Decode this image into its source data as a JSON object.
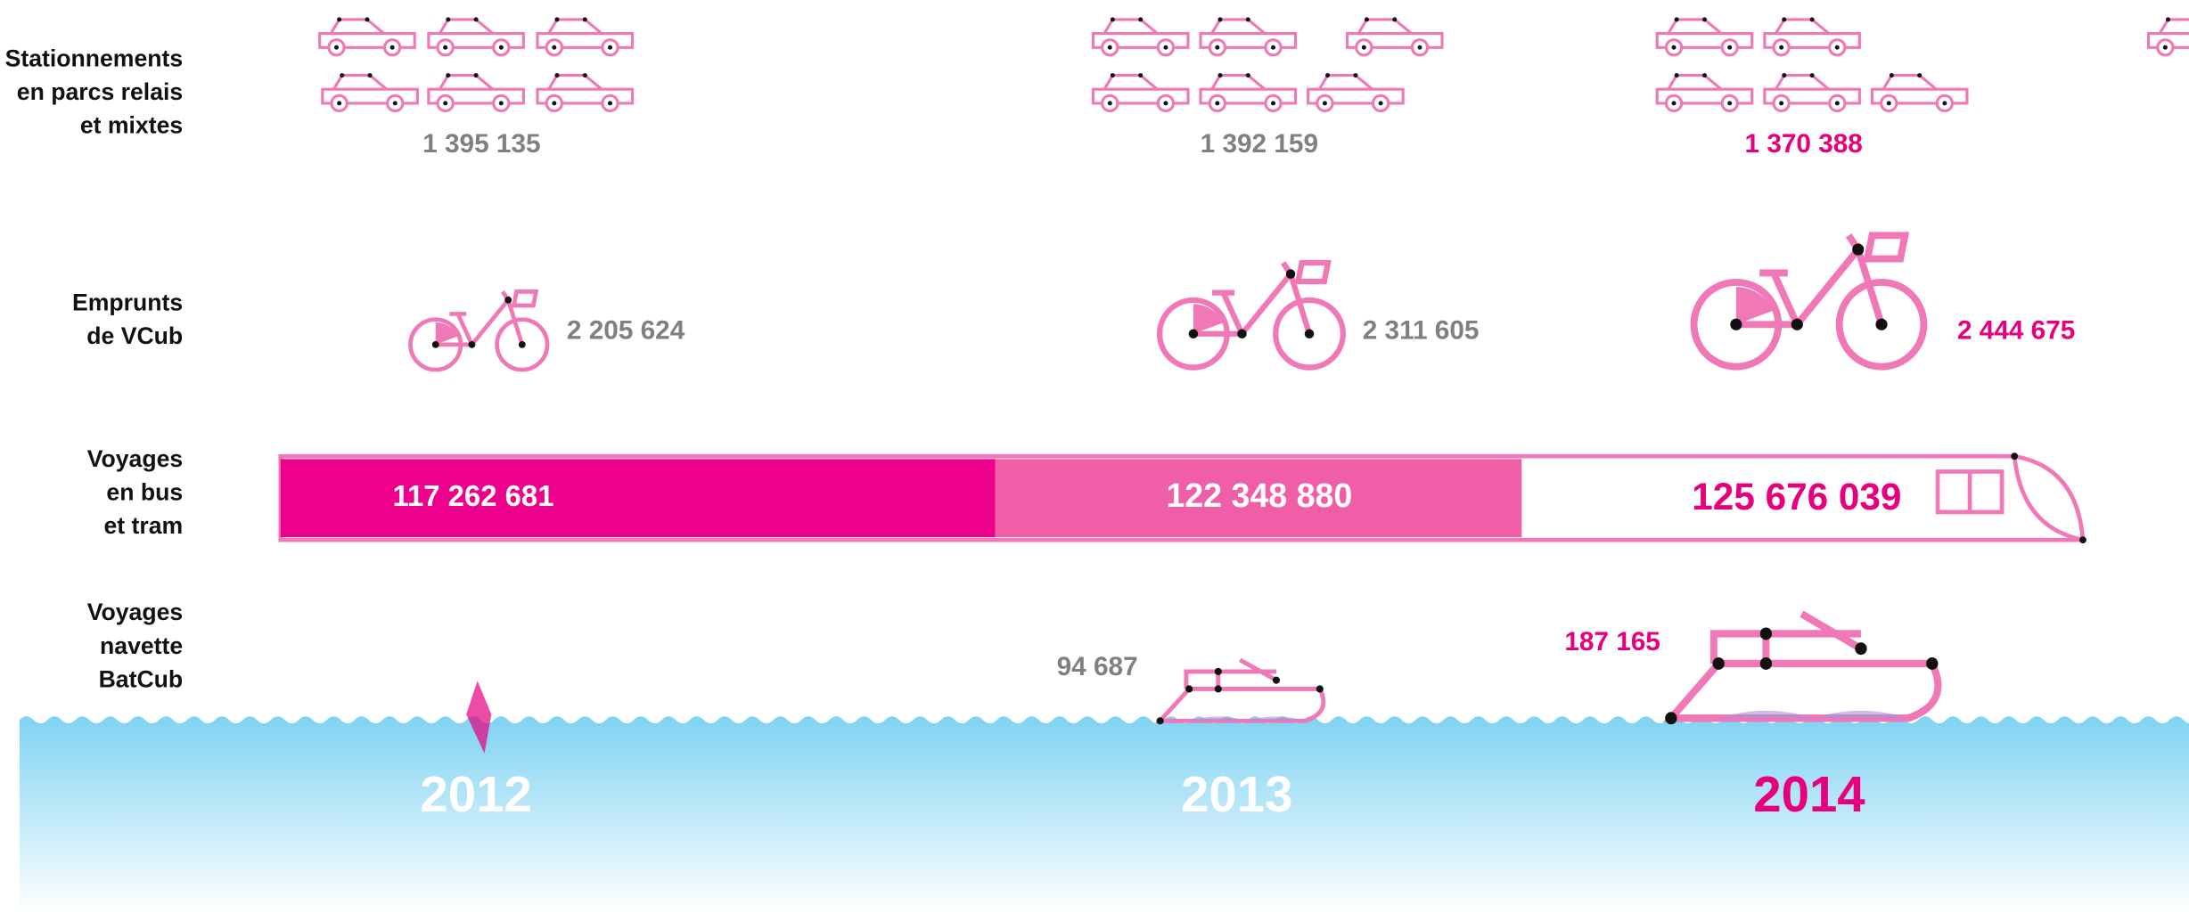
{
  "labels": {
    "parking": [
      "Stationnements",
      "en parcs relais",
      "et mixtes"
    ],
    "vcub": [
      "Emprunts",
      "de VCub"
    ],
    "bus_tram": [
      "Voyages",
      "en bus",
      "et tram"
    ],
    "batcub": [
      "Voyages",
      "navette",
      "BatCub"
    ]
  },
  "years": [
    {
      "label": "2012",
      "parking": "1 395 135",
      "vcub": "2 205 624",
      "bus_tram": "117 262 681"
    },
    {
      "label": "2013",
      "parking": "1 392 159",
      "vcub": "2 311 605",
      "bus_tram": "122 348 880",
      "batcub": "94 687"
    },
    {
      "label": "2014",
      "parking": "1 370 388",
      "vcub": "2 444 675",
      "bus_tram": "125 676 039",
      "batcub": "187 165"
    }
  ]
}
